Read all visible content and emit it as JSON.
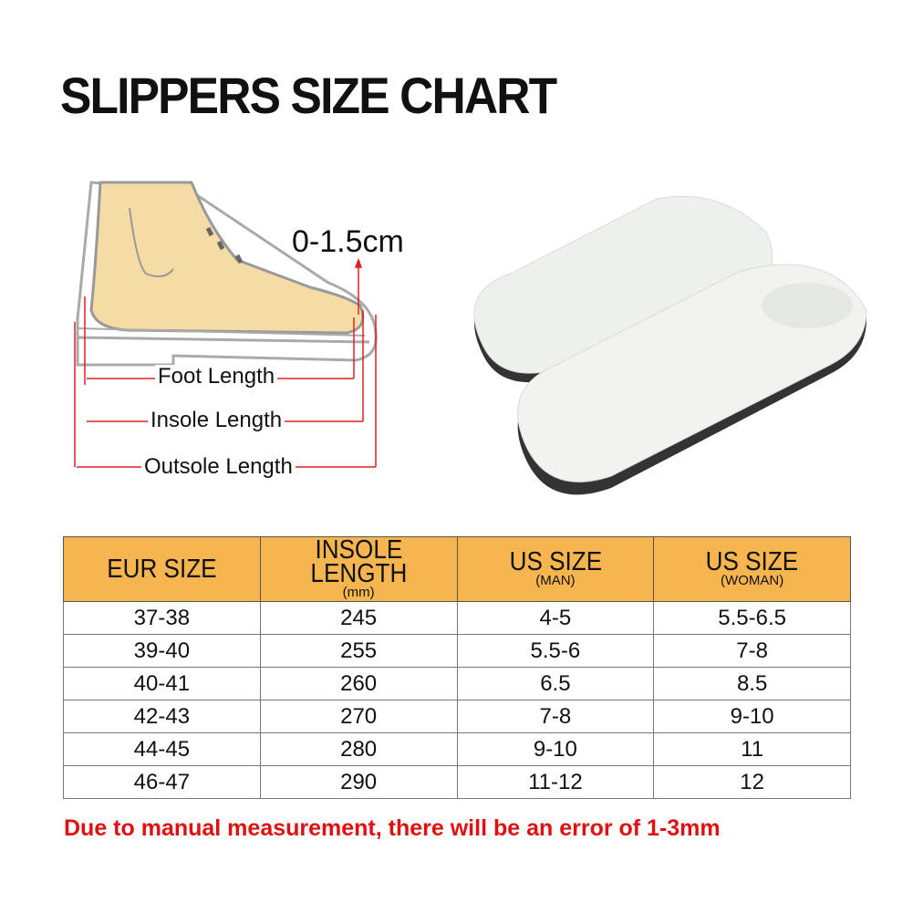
{
  "title": "SLIPPERS SIZE CHART",
  "diagram": {
    "gap_label": "0-1.5cm",
    "foot_length": "Foot Length",
    "insole_length": "Insole Length",
    "outsole_length": "Outsole Length",
    "colors": {
      "skin": "#f5dba5",
      "measure": "#e02020",
      "outline": "#9a9a9a"
    }
  },
  "table": {
    "headers": [
      {
        "main": "EUR SIZE",
        "sub": ""
      },
      {
        "main": "INSOLE  LENGTH",
        "sub": "(mm)"
      },
      {
        "main": "US SIZE",
        "sub": "(MAN)"
      },
      {
        "main": "US SIZE",
        "sub": "(WOMAN)"
      }
    ],
    "rows": [
      [
        "37-38",
        "245",
        "4-5",
        "5.5-6.5"
      ],
      [
        "39-40",
        "255",
        "5.5-6",
        "7-8"
      ],
      [
        "40-41",
        "260",
        "6.5",
        "8.5"
      ],
      [
        "42-43",
        "270",
        "7-8",
        "9-10"
      ],
      [
        "44-45",
        "280",
        "9-10",
        "11"
      ],
      [
        "46-47",
        "290",
        "11-12",
        "12"
      ]
    ],
    "header_color": "#f6b54f"
  },
  "note": "Due to manual measurement, there will be an error of 1-3mm",
  "note_color": "#e01010"
}
